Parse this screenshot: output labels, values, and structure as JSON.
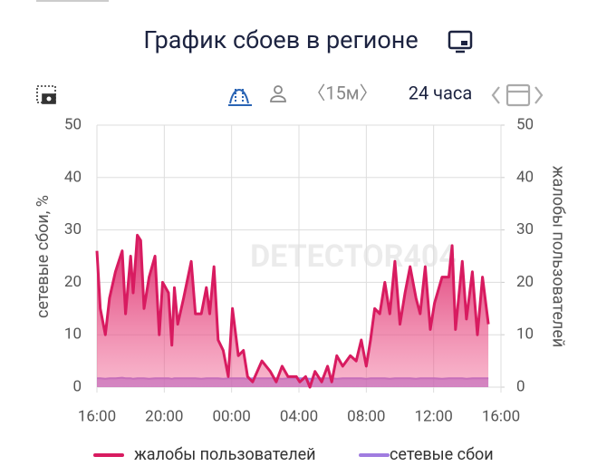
{
  "title": "График сбоев в регионе",
  "toolbar": {
    "interval": "〈15м〉",
    "period": "24 часа"
  },
  "watermark": "DETECTOR404",
  "chart_data": {
    "type": "line",
    "y_label": "сетевые сбои, %",
    "y2_label": "жалобы пользователей",
    "x": [
      0,
      0.2,
      0.5,
      0.75,
      1.1,
      1.5,
      1.7,
      2.0,
      2.15,
      2.4,
      2.6,
      2.8,
      3.1,
      3.45,
      3.7,
      3.9,
      4.25,
      4.45,
      4.6,
      4.8,
      5.15,
      5.6,
      5.85,
      6.2,
      6.5,
      6.7,
      6.95,
      7.2,
      7.5,
      7.8,
      8.05,
      8.4,
      8.7,
      8.95,
      9.25,
      9.8,
      10.3,
      10.65,
      11.0,
      11.35,
      11.85,
      12.05,
      12.4,
      12.65,
      12.95,
      13.35,
      13.7,
      13.95,
      14.25,
      14.6,
      15.05,
      15.4,
      15.7,
      16.0,
      16.25,
      16.5,
      16.8,
      17.1,
      17.4,
      17.7,
      18.0,
      18.3,
      18.6,
      18.95,
      19.2,
      19.5,
      19.8,
      20.05,
      20.5,
      20.9,
      21.1,
      21.3,
      21.7,
      21.95,
      22.3,
      22.6,
      22.9,
      23.25
    ],
    "series": [
      {
        "name": "жалобы пользователей",
        "color": "#d81b60",
        "axis": "y2",
        "values": [
          26,
          15,
          10,
          17,
          22,
          26,
          14,
          25,
          18,
          29,
          28,
          15,
          21,
          25,
          10,
          20,
          18,
          8,
          19,
          12,
          17,
          24,
          14,
          14,
          19,
          14,
          23,
          9,
          7,
          2,
          15,
          6,
          7,
          2,
          1,
          5,
          3,
          1,
          4,
          2,
          2,
          1,
          2,
          0,
          3,
          1,
          4,
          1,
          6,
          4,
          6,
          5,
          9,
          4,
          9,
          15,
          14,
          20,
          14,
          24,
          12,
          18,
          23,
          17,
          14,
          23,
          11,
          16,
          21,
          21,
          27,
          11,
          24,
          13,
          22,
          10,
          21,
          12
        ]
      },
      {
        "name": "сетевые сбои",
        "color": "#a07ce0",
        "values": [
          1.7,
          1.7,
          1.6,
          1.7,
          1.7,
          1.8,
          1.7,
          1.7,
          1.6,
          1.7,
          1.7,
          1.7,
          1.6,
          1.7,
          1.7,
          1.7,
          1.7,
          1.6,
          1.7,
          1.7,
          1.7,
          1.7,
          1.7,
          1.6,
          1.7,
          1.7,
          1.7,
          1.7,
          1.6,
          1.7,
          1.7,
          1.7,
          1.7,
          1.6,
          1.7,
          1.7,
          1.7,
          1.7,
          1.6,
          1.7,
          1.7,
          1.7,
          1.7,
          1.6,
          1.7,
          1.7,
          1.7,
          1.7,
          1.6,
          1.7,
          1.7,
          1.7,
          1.7,
          1.6,
          1.7,
          1.7,
          1.7,
          1.7,
          1.6,
          1.7,
          1.7,
          1.7,
          1.7,
          1.6,
          1.7,
          1.7,
          1.7,
          1.7,
          1.6,
          1.7,
          1.7,
          1.7,
          1.7,
          1.6,
          1.7,
          1.7,
          1.7,
          1.7
        ]
      }
    ],
    "xlim": [
      0,
      24
    ],
    "xticks": [
      {
        "value": 0,
        "label": "16:00"
      },
      {
        "value": 4,
        "label": "20:00"
      },
      {
        "value": 8,
        "label": "00:00"
      },
      {
        "value": 12,
        "label": "04:00"
      },
      {
        "value": 16,
        "label": "08:00"
      },
      {
        "value": 20,
        "label": "12:00"
      },
      {
        "value": 24,
        "label": "16:00"
      }
    ],
    "ylim": [
      0,
      50
    ],
    "yticks": [
      0,
      10,
      20,
      30,
      40,
      50
    ],
    "y2lim": [
      0,
      50
    ],
    "y2ticks": [
      0,
      10,
      20,
      30,
      40,
      50
    ],
    "grid": true,
    "legend": "bottom"
  }
}
